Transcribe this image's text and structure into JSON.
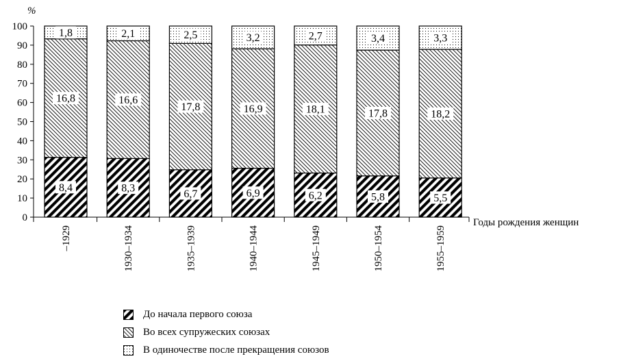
{
  "chart_data": {
    "type": "bar",
    "stacked": true,
    "ylabel": "%",
    "xlabel": "Годы рождения женщин",
    "ylim": [
      0,
      100
    ],
    "yticks": [
      0,
      10,
      20,
      30,
      40,
      50,
      60,
      70,
      80,
      90,
      100
    ],
    "categories": [
      "–1929",
      "1930–1934",
      "1935–1939",
      "1940–1944",
      "1945–1949",
      "1950–1954",
      "1955–1959"
    ],
    "series": [
      {
        "name": "До начала первого союза",
        "pattern": "dense-diagonal",
        "values": [
          31.3,
          30.7,
          24.8,
          25.6,
          23.1,
          21.6,
          20.5
        ],
        "labels": [
          "8,4",
          "8,3",
          "6,7",
          "6,9",
          "6,2",
          "5,8",
          "5,5"
        ]
      },
      {
        "name": "Во всех супружеских союзах",
        "pattern": "fine-diagonal",
        "values": [
          62.0,
          61.6,
          66.1,
          62.5,
          67.0,
          65.8,
          67.3
        ],
        "labels": [
          "16,8",
          "16,6",
          "17,8",
          "16,9",
          "18,1",
          "17,8",
          "18,2"
        ]
      },
      {
        "name": "В одиночестве после прекращения союзов",
        "pattern": "dots",
        "values": [
          6.7,
          7.7,
          9.1,
          11.9,
          9.9,
          12.6,
          12.2
        ],
        "labels": [
          "1,8",
          "2,1",
          "2,5",
          "3,2",
          "2,7",
          "3,4",
          "3,3"
        ]
      }
    ],
    "legend_position": "bottom"
  }
}
